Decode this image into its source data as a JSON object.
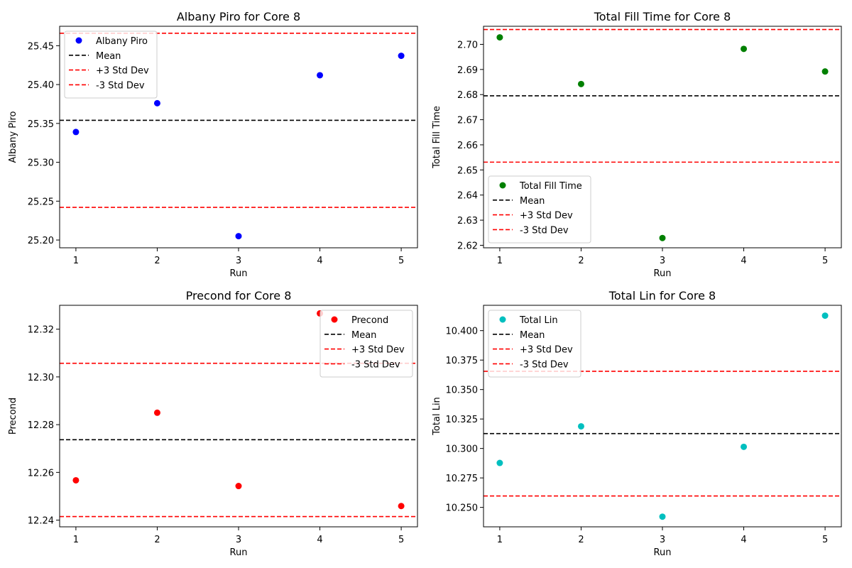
{
  "chart_data": [
    {
      "type": "scatter",
      "title": "Albany Piro for Core 8",
      "xlabel": "Run",
      "ylabel": "Albany Piro",
      "xlim": [
        0.8,
        5.2
      ],
      "ylim": [
        25.19,
        25.475
      ],
      "xticks": [
        1,
        2,
        3,
        4,
        5
      ],
      "yticks": [
        "25.20",
        "25.25",
        "25.30",
        "25.35",
        "25.40",
        "25.45"
      ],
      "x": [
        1,
        2,
        3,
        4,
        5
      ],
      "series": [
        {
          "name": "Albany Piro",
          "color": "#0000ff",
          "values": [
            25.339,
            25.376,
            25.205,
            25.412,
            25.437
          ]
        }
      ],
      "hlines": [
        {
          "name": "Mean",
          "value": 25.354,
          "color": "#000000"
        },
        {
          "name": "+3 Std Dev",
          "value": 25.466,
          "color": "#ff0000"
        },
        {
          "name": "-3 Std Dev",
          "value": 25.242,
          "color": "#ff0000"
        }
      ],
      "legend": "upper-left",
      "grid": false
    },
    {
      "type": "scatter",
      "title": "Total Fill Time for Core 8",
      "xlabel": "Run",
      "ylabel": "Total Fill Time",
      "xlim": [
        0.8,
        5.2
      ],
      "ylim": [
        2.619,
        2.7072
      ],
      "xticks": [
        1,
        2,
        3,
        4,
        5
      ],
      "yticks": [
        "2.62",
        "2.63",
        "2.64",
        "2.65",
        "2.66",
        "2.67",
        "2.68",
        "2.69",
        "2.70"
      ],
      "x": [
        1,
        2,
        3,
        4,
        5
      ],
      "series": [
        {
          "name": "Total Fill Time",
          "color": "#008000",
          "values": [
            2.7028,
            2.6842,
            2.6229,
            2.6982,
            2.6892
          ]
        }
      ],
      "hlines": [
        {
          "name": "Mean",
          "value": 2.6795,
          "color": "#000000"
        },
        {
          "name": "+3 Std Dev",
          "value": 2.7059,
          "color": "#ff0000"
        },
        {
          "name": "-3 Std Dev",
          "value": 2.6531,
          "color": "#ff0000"
        }
      ],
      "legend": "lower-left",
      "grid": false
    },
    {
      "type": "scatter",
      "title": "Precond for Core 8",
      "xlabel": "Run",
      "ylabel": "Precond",
      "xlim": [
        0.8,
        5.2
      ],
      "ylim": [
        12.2372,
        12.33
      ],
      "xticks": [
        1,
        2,
        3,
        4,
        5
      ],
      "yticks": [
        "12.24",
        "12.26",
        "12.28",
        "12.30",
        "12.32"
      ],
      "x": [
        1,
        2,
        3,
        4,
        5
      ],
      "series": [
        {
          "name": "Precond",
          "color": "#ff0000",
          "values": [
            12.2567,
            12.285,
            12.2543,
            12.3266,
            12.2459
          ]
        }
      ],
      "hlines": [
        {
          "name": "Mean",
          "value": 12.2737,
          "color": "#000000"
        },
        {
          "name": "+3 Std Dev",
          "value": 12.3057,
          "color": "#ff0000"
        },
        {
          "name": "-3 Std Dev",
          "value": 12.2415,
          "color": "#ff0000"
        }
      ],
      "legend": "upper-right",
      "grid": false
    },
    {
      "type": "scatter",
      "title": "Total Lin for Core 8",
      "xlabel": "Run",
      "ylabel": "Total Lin",
      "xlim": [
        0.8,
        5.2
      ],
      "ylim": [
        10.2335,
        10.4215
      ],
      "xticks": [
        1,
        2,
        3,
        4,
        5
      ],
      "yticks": [
        "10.250",
        "10.275",
        "10.300",
        "10.325",
        "10.350",
        "10.375",
        "10.400"
      ],
      "x": [
        1,
        2,
        3,
        4,
        5
      ],
      "series": [
        {
          "name": "Total Lin",
          "color": "#00bfbf",
          "values": [
            10.2877,
            10.3188,
            10.2421,
            10.3014,
            10.4127
          ]
        }
      ],
      "hlines": [
        {
          "name": "Mean",
          "value": 10.3126,
          "color": "#000000"
        },
        {
          "name": "+3 Std Dev",
          "value": 10.3655,
          "color": "#ff0000"
        },
        {
          "name": "-3 Std Dev",
          "value": 10.2597,
          "color": "#ff0000"
        }
      ],
      "legend": "upper-left",
      "grid": false
    }
  ]
}
